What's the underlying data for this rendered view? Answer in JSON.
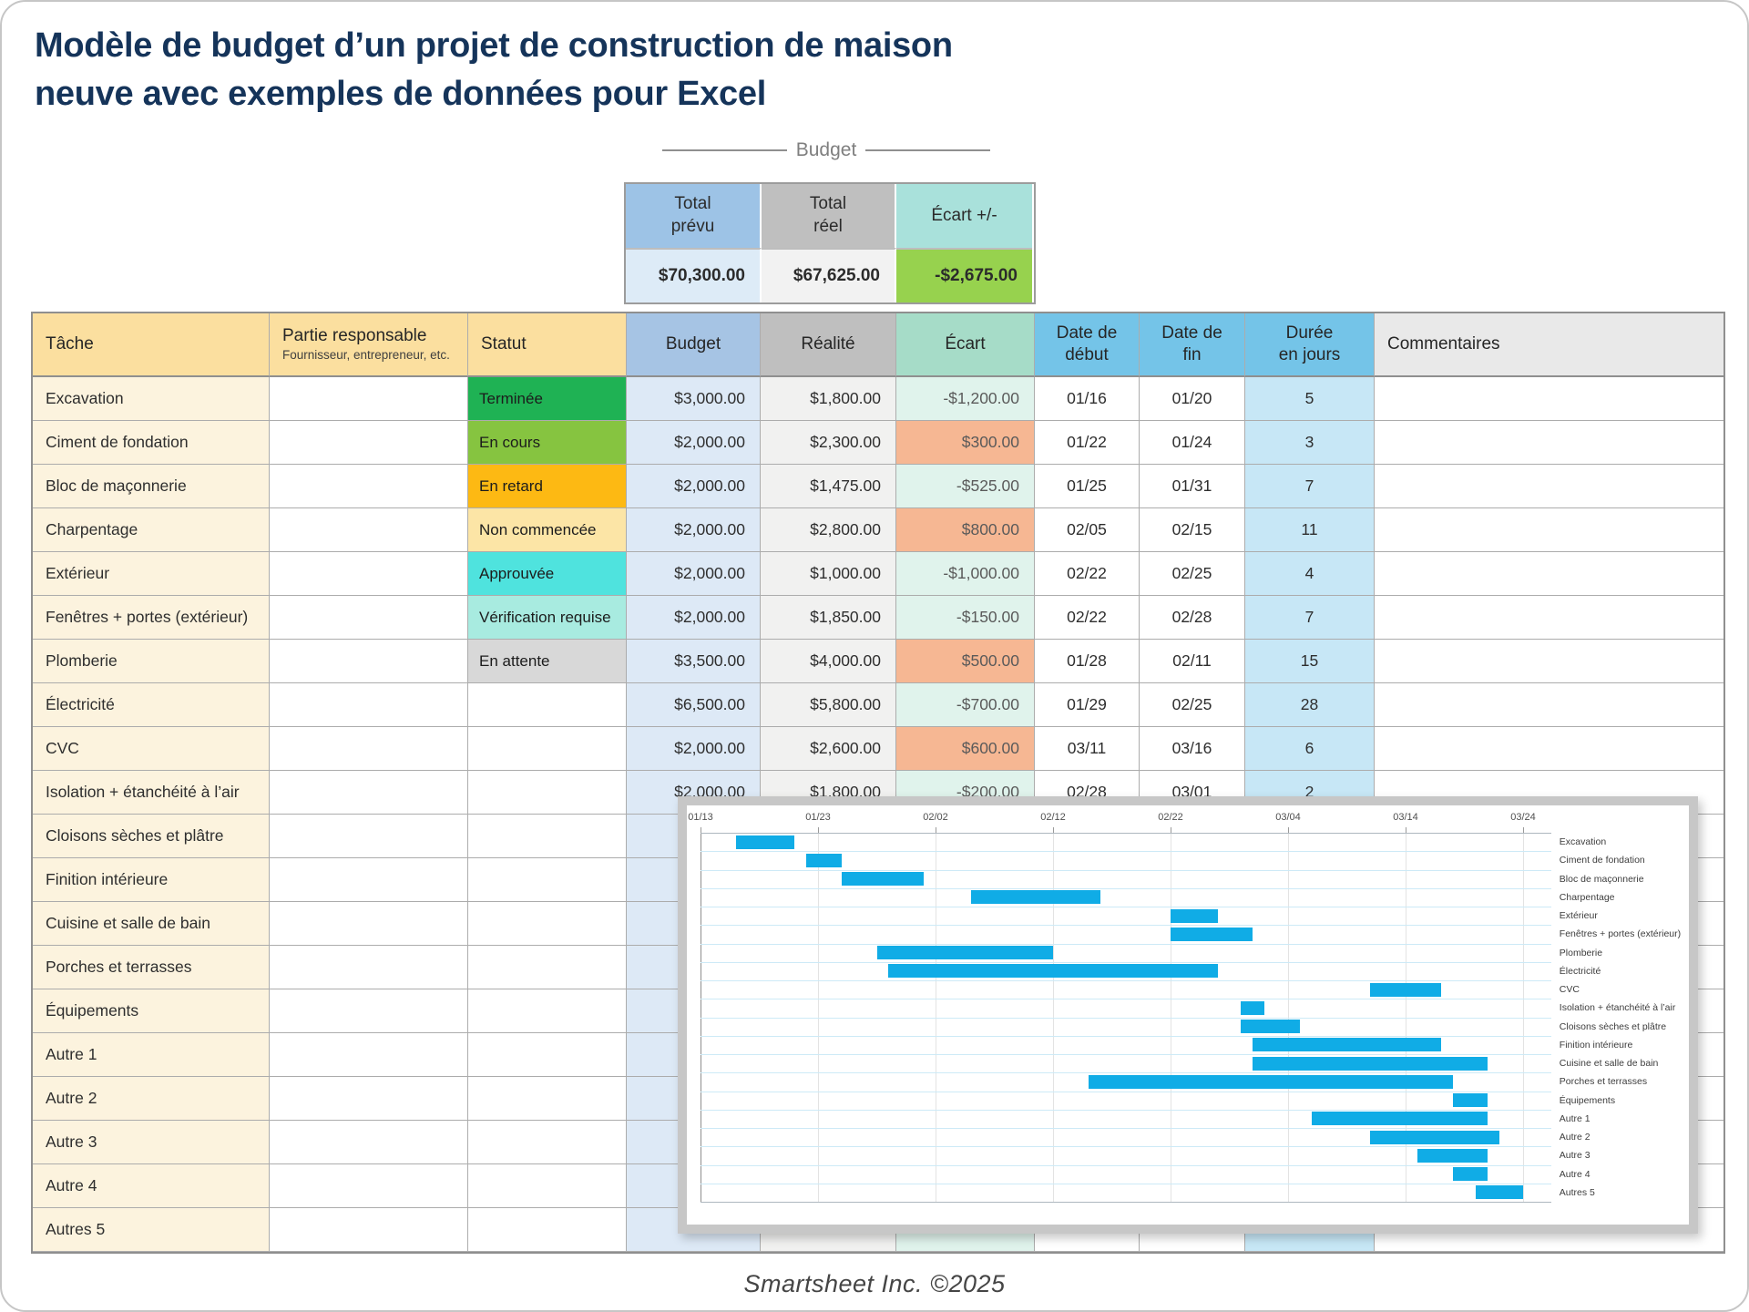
{
  "title": {
    "line1": "Modèle de budget d’un projet de construction de maison",
    "line2": "neuve avec exemples de données pour Excel"
  },
  "summary": {
    "section_label": "Budget",
    "columns": [
      {
        "label": "Total\nprévu",
        "value": "$70,300.00",
        "header_color": "#9DC3E6",
        "value_color": "#DDEBF7"
      },
      {
        "label": "Total\nréel",
        "value": "$67,625.00",
        "header_color": "#BFBFBF",
        "value_color": "#F2F2F2"
      },
      {
        "label": "Écart +/-",
        "value": "-$2,675.00",
        "header_color": "#A9E1DB",
        "value_color": "#97D24E"
      }
    ]
  },
  "table": {
    "headers": [
      {
        "label": "Tâche"
      },
      {
        "label": "Partie responsable",
        "sub": "Fournisseur, entrepreneur, etc."
      },
      {
        "label": "Statut"
      },
      {
        "label": "Budget"
      },
      {
        "label": "Réalité"
      },
      {
        "label": "Écart"
      },
      {
        "label": "Date de\ndébut"
      },
      {
        "label": "Date de\nfin"
      },
      {
        "label": "Durée\nen jours"
      },
      {
        "label": "Commentaires"
      }
    ],
    "rows": [
      {
        "task": "Excavation",
        "responsible": "",
        "status": "Terminée",
        "budget": "$3,000.00",
        "actual": "$1,800.00",
        "variance": "-$1,200.00",
        "variance_type": "neg",
        "start": "01/16",
        "end": "01/20",
        "duration": "5",
        "comments": ""
      },
      {
        "task": "Ciment de fondation",
        "responsible": "",
        "status": "En cours",
        "budget": "$2,000.00",
        "actual": "$2,300.00",
        "variance": "$300.00",
        "variance_type": "pos",
        "start": "01/22",
        "end": "01/24",
        "duration": "3",
        "comments": ""
      },
      {
        "task": "Bloc de maçonnerie",
        "responsible": "",
        "status": "En retard",
        "budget": "$2,000.00",
        "actual": "$1,475.00",
        "variance": "-$525.00",
        "variance_type": "neg",
        "start": "01/25",
        "end": "01/31",
        "duration": "7",
        "comments": ""
      },
      {
        "task": "Charpentage",
        "responsible": "",
        "status": "Non commencée",
        "budget": "$2,000.00",
        "actual": "$2,800.00",
        "variance": "$800.00",
        "variance_type": "pos",
        "start": "02/05",
        "end": "02/15",
        "duration": "11",
        "comments": ""
      },
      {
        "task": "Extérieur",
        "responsible": "",
        "status": "Approuvée",
        "budget": "$2,000.00",
        "actual": "$1,000.00",
        "variance": "-$1,000.00",
        "variance_type": "neg",
        "start": "02/22",
        "end": "02/25",
        "duration": "4",
        "comments": ""
      },
      {
        "task": "Fenêtres + portes (extérieur)",
        "responsible": "",
        "status": "Vérification requise",
        "budget": "$2,000.00",
        "actual": "$1,850.00",
        "variance": "-$150.00",
        "variance_type": "neg",
        "start": "02/22",
        "end": "02/28",
        "duration": "7",
        "comments": ""
      },
      {
        "task": "Plomberie",
        "responsible": "",
        "status": "En attente",
        "budget": "$3,500.00",
        "actual": "$4,000.00",
        "variance": "$500.00",
        "variance_type": "pos",
        "start": "01/28",
        "end": "02/11",
        "duration": "15",
        "comments": ""
      },
      {
        "task": "Électricité",
        "responsible": "",
        "status": "",
        "budget": "$6,500.00",
        "actual": "$5,800.00",
        "variance": "-$700.00",
        "variance_type": "neg",
        "start": "01/29",
        "end": "02/25",
        "duration": "28",
        "comments": ""
      },
      {
        "task": "CVC",
        "responsible": "",
        "status": "",
        "budget": "$2,000.00",
        "actual": "$2,600.00",
        "variance": "$600.00",
        "variance_type": "pos",
        "start": "03/11",
        "end": "03/16",
        "duration": "6",
        "comments": ""
      },
      {
        "task": "Isolation + étanchéité à l’air",
        "responsible": "",
        "status": "",
        "budget": "$2,000.00",
        "actual": "$1,800.00",
        "variance": "-$200.00",
        "variance_type": "neg",
        "start": "02/28",
        "end": "03/01",
        "duration": "2",
        "comments": ""
      },
      {
        "task": "Cloisons sèches et plâtre",
        "responsible": "",
        "status": "",
        "budget": "",
        "actual": "",
        "variance": "",
        "variance_type": "neg",
        "start": "",
        "end": "",
        "duration": "",
        "comments": ""
      },
      {
        "task": "Finition intérieure",
        "responsible": "",
        "status": "",
        "budget": "",
        "actual": "",
        "variance": "",
        "variance_type": "neg",
        "start": "",
        "end": "",
        "duration": "",
        "comments": ""
      },
      {
        "task": "Cuisine et salle de bain",
        "responsible": "",
        "status": "",
        "budget": "",
        "actual": "",
        "variance": "",
        "variance_type": "neg",
        "start": "",
        "end": "",
        "duration": "",
        "comments": ""
      },
      {
        "task": "Porches et terrasses",
        "responsible": "",
        "status": "",
        "budget": "",
        "actual": "",
        "variance": "",
        "variance_type": "neg",
        "start": "",
        "end": "",
        "duration": "",
        "comments": ""
      },
      {
        "task": "Équipements",
        "responsible": "",
        "status": "",
        "budget": "",
        "actual": "",
        "variance": "",
        "variance_type": "neg",
        "start": "",
        "end": "",
        "duration": "",
        "comments": ""
      },
      {
        "task": "Autre 1",
        "responsible": "",
        "status": "",
        "budget": "",
        "actual": "",
        "variance": "",
        "variance_type": "neg",
        "start": "",
        "end": "",
        "duration": "",
        "comments": ""
      },
      {
        "task": "Autre 2",
        "responsible": "",
        "status": "",
        "budget": "",
        "actual": "",
        "variance": "",
        "variance_type": "neg",
        "start": "",
        "end": "",
        "duration": "",
        "comments": ""
      },
      {
        "task": "Autre 3",
        "responsible": "",
        "status": "",
        "budget": "",
        "actual": "",
        "variance": "",
        "variance_type": "neg",
        "start": "",
        "end": "",
        "duration": "",
        "comments": ""
      },
      {
        "task": "Autre 4",
        "responsible": "",
        "status": "",
        "budget": "",
        "actual": "",
        "variance": "",
        "variance_type": "neg",
        "start": "",
        "end": "",
        "duration": "",
        "comments": ""
      },
      {
        "task": "Autres 5",
        "responsible": "",
        "status": "",
        "budget": "",
        "actual": "",
        "variance": "",
        "variance_type": "neg",
        "start": "",
        "end": "",
        "duration": "",
        "comments": ""
      }
    ]
  },
  "status_colors": {
    "Terminée": "#1FB254",
    "En cours": "#86C440",
    "En retard": "#FDB913",
    "Non commencée": "#FCE5A6",
    "Approuvée": "#4FE3DE",
    "Vérification requise": "#A8EBE0",
    "En attente": "#D8D8D8"
  },
  "column_colors": {
    "task_bg": "#FCF3DE",
    "header_tan": "#FBDF9F",
    "budget_header": "#A6C4E4",
    "budget_bg": "#DDE9F6",
    "actual_header": "#BFBFBF",
    "actual_bg": "#F1F1F0",
    "variance_header": "#A6DCC8",
    "variance_neg_bg": "#E0F3EC",
    "variance_pos_bg": "#F6B793",
    "date_header": "#74C4E8",
    "duration_bg": "#C7E7F6",
    "comments_header": "#E9E9E9"
  },
  "gantt": {
    "type": "gantt-bar",
    "bar_color": "#10ACE6",
    "axis_ticks": [
      {
        "label": "01/13",
        "day": 0
      },
      {
        "label": "01/23",
        "day": 10
      },
      {
        "label": "02/02",
        "day": 20
      },
      {
        "label": "02/12",
        "day": 30
      },
      {
        "label": "02/22",
        "day": 40
      },
      {
        "label": "03/04",
        "day": 50
      },
      {
        "label": "03/14",
        "day": 60
      },
      {
        "label": "03/24",
        "day": 70
      }
    ],
    "tasks": [
      {
        "label": "Excavation",
        "start": 3,
        "duration": 5
      },
      {
        "label": "Ciment de fondation",
        "start": 9,
        "duration": 3
      },
      {
        "label": "Bloc de maçonnerie",
        "start": 12,
        "duration": 7
      },
      {
        "label": "Charpentage",
        "start": 23,
        "duration": 11
      },
      {
        "label": "Extérieur",
        "start": 40,
        "duration": 4
      },
      {
        "label": "Fenêtres + portes (extérieur)",
        "start": 40,
        "duration": 7
      },
      {
        "label": "Plomberie",
        "start": 15,
        "duration": 15
      },
      {
        "label": "Électricité",
        "start": 16,
        "duration": 28
      },
      {
        "label": "CVC",
        "start": 57,
        "duration": 6
      },
      {
        "label": "Isolation + étanchéité à l’air",
        "start": 46,
        "duration": 2
      },
      {
        "label": "Cloisons sèches et plâtre",
        "start": 46,
        "duration": 5
      },
      {
        "label": "Finition intérieure",
        "start": 47,
        "duration": 16
      },
      {
        "label": "Cuisine et salle de bain",
        "start": 47,
        "duration": 20
      },
      {
        "label": "Porches et terrasses",
        "start": 33,
        "duration": 31
      },
      {
        "label": "Équipements",
        "start": 64,
        "duration": 3
      },
      {
        "label": "Autre 1",
        "start": 52,
        "duration": 15
      },
      {
        "label": "Autre 2",
        "start": 57,
        "duration": 11
      },
      {
        "label": "Autre 3",
        "start": 61,
        "duration": 6
      },
      {
        "label": "Autre 4",
        "start": 64,
        "duration": 3
      },
      {
        "label": "Autres 5",
        "start": 66,
        "duration": 4
      }
    ]
  },
  "footer": {
    "text": "Smartsheet Inc. ©2025"
  }
}
